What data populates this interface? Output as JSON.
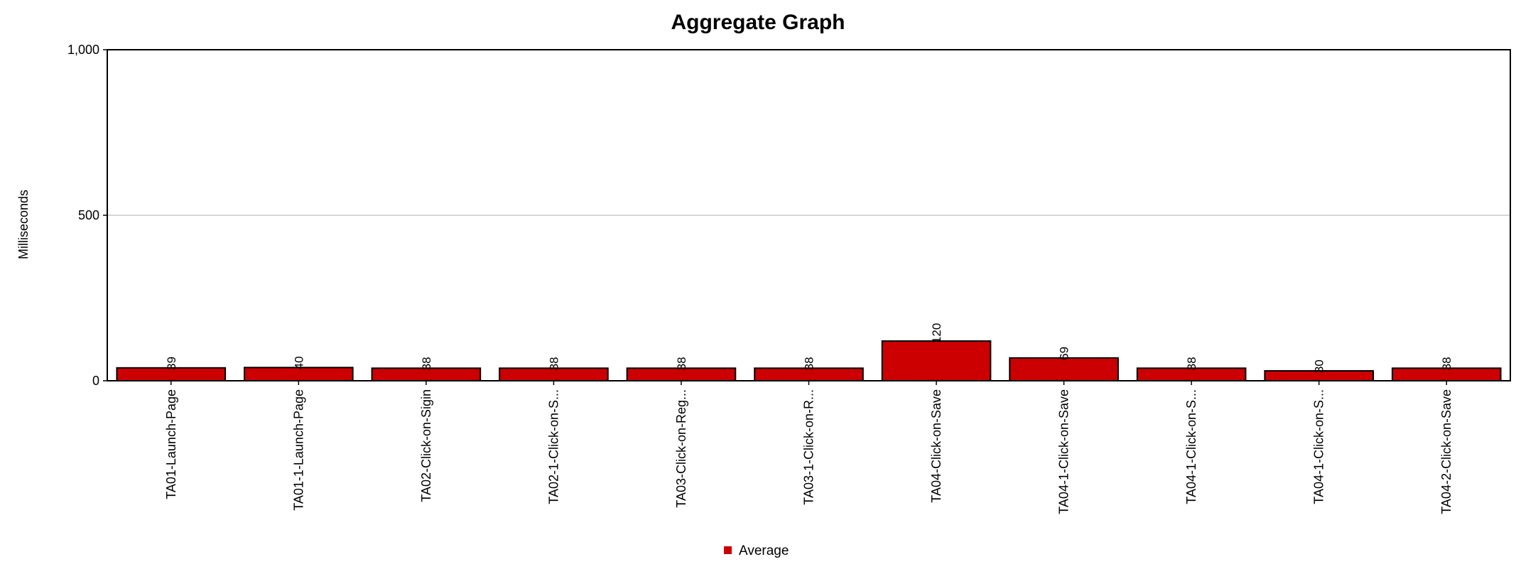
{
  "chart_data": {
    "type": "bar",
    "title": "Aggregate Graph",
    "xlabel": "",
    "ylabel": "Milliseconds",
    "ylim": [
      0,
      1000
    ],
    "y_ticks": [
      0,
      500,
      1000
    ],
    "y_tick_labels": [
      "0",
      "500",
      "1,000"
    ],
    "grid": true,
    "categories": [
      "TA01-Launch-Page",
      "TA01-1-Launch-Page",
      "TA02-Click-on-Sigin",
      "TA02-1-Click-on-S...",
      "TA03-Click-on-Reg...",
      "TA03-1-Click-on-R...",
      "TA04-Click-on-Save",
      "TA04-1-Click-on-Save",
      "TA04-1-Click-on-S...",
      "TA04-1-Click-on-S...",
      "TA04-2-Click-on-Save"
    ],
    "series": [
      {
        "name": "Average",
        "color": "#cc0000",
        "values": [
          39,
          40,
          38,
          38,
          38,
          38,
          120,
          69,
          38,
          30,
          38
        ]
      }
    ],
    "legend_position": "bottom-center"
  }
}
